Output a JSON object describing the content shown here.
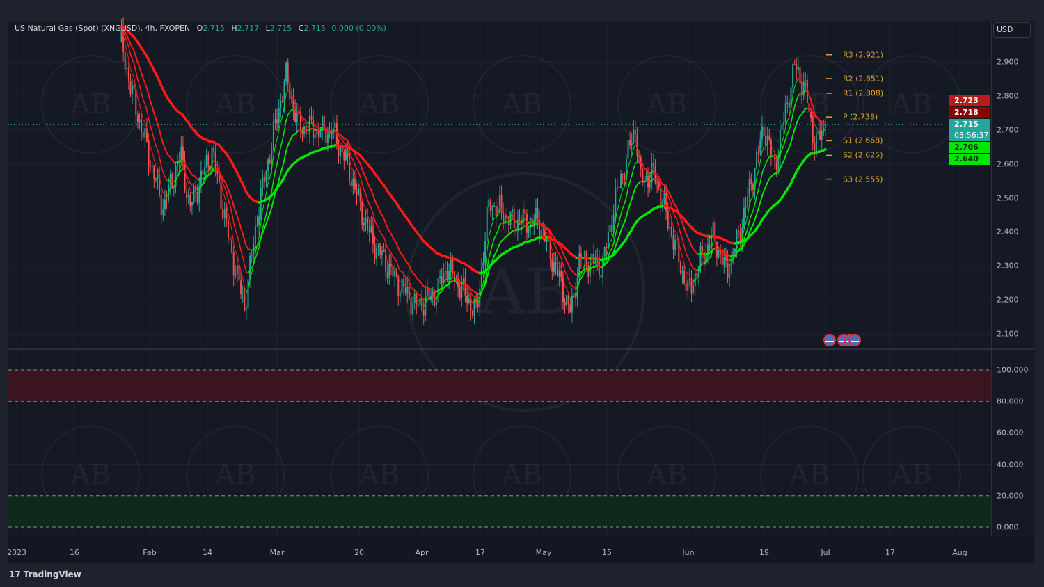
{
  "header": {
    "symbol_title": "US Natural Gas (Spot) (XNGUSD), 4h, FXOPEN",
    "open_label": "O",
    "open": "2.715",
    "high_label": "H",
    "high": "2.717",
    "low_label": "L",
    "low": "2.715",
    "close_label": "C",
    "close": "2.715",
    "change": "0.000 (0.00%)"
  },
  "currency_button": "USD",
  "price_axis": {
    "ticks": [
      "2.900",
      "2.800",
      "2.700",
      "2.600",
      "2.500",
      "2.400",
      "2.300",
      "2.200",
      "2.100"
    ],
    "labels": [
      {
        "value": "2.723",
        "bg": "#b71c1c",
        "fg": "#ffffff"
      },
      {
        "value": "2.718",
        "bg": "#8b0000",
        "fg": "#ffffff"
      },
      {
        "value": "2.715",
        "sub": "03:56:37",
        "bg": "#26a69a",
        "fg": "#ffffff"
      },
      {
        "value": "2.706",
        "bg": "#00e600",
        "fg": "#0a3a0a"
      },
      {
        "value": "2.640",
        "bg": "#00e600",
        "fg": "#0a3a0a"
      }
    ]
  },
  "oscillator_axis": {
    "ticks": [
      "100.000",
      "80.000",
      "60.000",
      "40.000",
      "20.000",
      "0.000"
    ]
  },
  "time_axis": {
    "ticks": [
      "2023",
      "16",
      "Feb",
      "14",
      "Mar",
      "20",
      "Apr",
      "17",
      "May",
      "15",
      "Jun",
      "19",
      "Jul",
      "17",
      "Aug"
    ]
  },
  "pivots": [
    {
      "label": "R3 (2.921)",
      "value": 2.921
    },
    {
      "label": "R2 (2.851)",
      "value": 2.851
    },
    {
      "label": "R1 (2.808)",
      "value": 2.808
    },
    {
      "label": "P (2.738)",
      "value": 2.738
    },
    {
      "label": "S1 (2.668)",
      "value": 2.668
    },
    {
      "label": "S2 (2.625)",
      "value": 2.625
    },
    {
      "label": "S3 (2.555)",
      "value": 2.555
    }
  ],
  "colors": {
    "up": "#26a69a",
    "down": "#ef5350",
    "ma_up": "#00e600",
    "ma_down": "#ff1a1a",
    "pivot": "#e0a030",
    "overbought_band": "#3a1520",
    "oversold_band": "#0f2a1a"
  },
  "watermark": "AB",
  "branding": "TradingView",
  "chart_data": {
    "type": "candlestick",
    "title": "US Natural Gas (Spot) (XNGUSD), 4h, FXOPEN",
    "ylim": [
      2.08,
      2.98
    ],
    "close_path": [
      [
        "2023-01-26",
        2.96
      ],
      [
        "2023-01-28",
        2.82
      ],
      [
        "2023-02-04",
        2.47
      ],
      [
        "2023-02-08",
        2.63
      ],
      [
        "2023-02-10",
        2.47
      ],
      [
        "2023-02-15",
        2.64
      ],
      [
        "2023-02-19",
        2.35
      ],
      [
        "2023-02-22",
        2.18
      ],
      [
        "2023-02-25",
        2.47
      ],
      [
        "2023-03-03",
        2.86
      ],
      [
        "2023-03-06",
        2.71
      ],
      [
        "2023-03-10",
        2.7
      ],
      [
        "2023-03-14",
        2.69
      ],
      [
        "2023-03-17",
        2.61
      ],
      [
        "2023-03-22",
        2.39
      ],
      [
        "2023-03-27",
        2.26
      ],
      [
        "2023-03-31",
        2.18
      ],
      [
        "2023-04-05",
        2.22
      ],
      [
        "2023-04-08",
        2.3
      ],
      [
        "2023-04-16",
        2.16
      ],
      [
        "2023-04-19",
        2.49
      ],
      [
        "2023-04-24",
        2.43
      ],
      [
        "2023-04-30",
        2.43
      ],
      [
        "2023-05-04",
        2.28
      ],
      [
        "2023-05-07",
        2.16
      ],
      [
        "2023-05-09",
        2.32
      ],
      [
        "2023-05-14",
        2.3
      ],
      [
        "2023-05-17",
        2.51
      ],
      [
        "2023-05-21",
        2.71
      ],
      [
        "2023-05-22",
        2.55
      ],
      [
        "2023-05-25",
        2.57
      ],
      [
        "2023-05-29",
        2.37
      ],
      [
        "2023-06-01",
        2.22
      ],
      [
        "2023-06-04",
        2.32
      ],
      [
        "2023-06-07",
        2.39
      ],
      [
        "2023-06-10",
        2.28
      ],
      [
        "2023-06-13",
        2.39
      ],
      [
        "2023-06-19",
        2.71
      ],
      [
        "2023-06-21",
        2.59
      ],
      [
        "2023-06-25",
        2.89
      ],
      [
        "2023-06-27",
        2.82
      ],
      [
        "2023-06-29",
        2.65
      ],
      [
        "2023-07-01",
        2.715
      ]
    ],
    "last_price": 2.715,
    "oscillator": {
      "ylim": [
        0,
        100
      ],
      "overbought": [
        80,
        100
      ],
      "oversold": [
        0,
        20
      ]
    }
  }
}
